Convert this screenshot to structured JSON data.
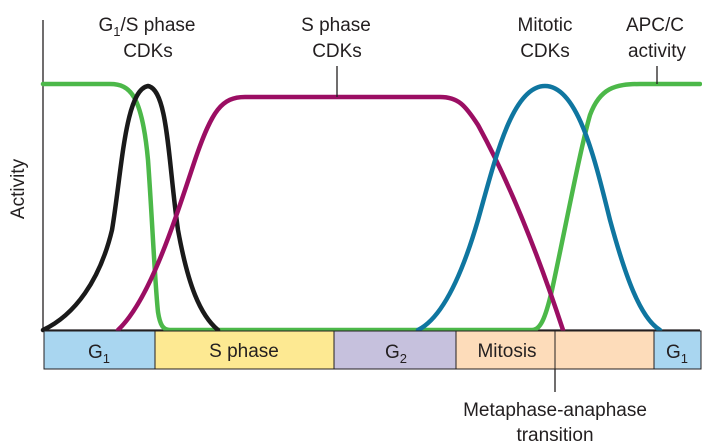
{
  "diagram": {
    "y_axis_label": "Activity",
    "curve_labels": {
      "g1s": {
        "line1_main": "G",
        "line1_sub": "1",
        "line1_rest": "/S phase",
        "line2": "CDKs"
      },
      "s": {
        "line1": "S phase",
        "line2": "CDKs"
      },
      "mitotic": {
        "line1": "Mitotic",
        "line2": "CDKs"
      },
      "apc": {
        "line1": "APC/C",
        "line2": "activity"
      }
    },
    "phases": [
      {
        "main": "G",
        "sub": "1",
        "color": "#a9d6f0"
      },
      {
        "main": "S phase",
        "sub": "",
        "color": "#fde992"
      },
      {
        "main": "G",
        "sub": "2",
        "color": "#c6c1dd"
      },
      {
        "main": "Mitosis",
        "sub": "",
        "color": "#fddcba"
      },
      {
        "main": "",
        "sub": "",
        "color": "#fddcba"
      },
      {
        "main": "G",
        "sub": "1",
        "color": "#a9d6f0"
      }
    ],
    "transition_label": {
      "line1": "Metaphase-anaphase",
      "line2": "transition"
    },
    "colors": {
      "g1s_cdk": "#1a1a1a",
      "s_cdk": "#9b0e63",
      "mitotic_cdk": "#0f76a0",
      "apc": "#4cb849"
    }
  }
}
